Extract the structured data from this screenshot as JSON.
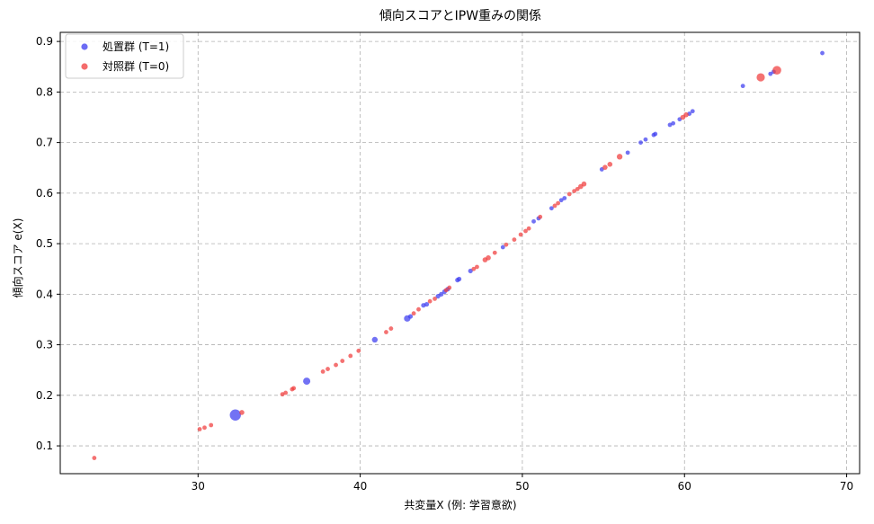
{
  "chart_data": {
    "type": "scatter",
    "title": "傾向スコアとIPW重みの関係",
    "xlabel": "共変量X (例: 学習意欲)",
    "ylabel": "傾向スコア e(X)",
    "xlim": [
      21.5,
      70.8
    ],
    "ylim": [
      0.045,
      0.918
    ],
    "xticks": [
      30,
      40,
      50,
      60,
      70
    ],
    "yticks": [
      0.1,
      0.2,
      0.3,
      0.4,
      0.5,
      0.6,
      0.7,
      0.8,
      0.9
    ],
    "grid": true,
    "legend_position": "top-left",
    "series": [
      {
        "name": "処置群 (T=1)",
        "color": "#3b3bf0",
        "points": [
          [
            32.3,
            0.161,
            6.2
          ],
          [
            36.7,
            0.228,
            4.0
          ],
          [
            40.9,
            0.31,
            3.2
          ],
          [
            42.9,
            0.352,
            3.6
          ],
          [
            43.1,
            0.356,
            2.6
          ],
          [
            43.9,
            0.378,
            2.6
          ],
          [
            44.1,
            0.38,
            2.6
          ],
          [
            44.8,
            0.396,
            2.6
          ],
          [
            45.0,
            0.4,
            2.6
          ],
          [
            45.2,
            0.405,
            2.6
          ],
          [
            45.4,
            0.41,
            2.6
          ],
          [
            46.0,
            0.428,
            2.6
          ],
          [
            46.1,
            0.43,
            2.6
          ],
          [
            46.8,
            0.446,
            2.6
          ],
          [
            48.8,
            0.493,
            2.4
          ],
          [
            50.7,
            0.544,
            2.4
          ],
          [
            51.0,
            0.55,
            2.4
          ],
          [
            51.8,
            0.57,
            2.4
          ],
          [
            52.4,
            0.586,
            2.4
          ],
          [
            52.6,
            0.59,
            2.4
          ],
          [
            54.9,
            0.647,
            2.4
          ],
          [
            56.5,
            0.68,
            2.4
          ],
          [
            57.3,
            0.7,
            2.4
          ],
          [
            57.6,
            0.706,
            2.4
          ],
          [
            58.1,
            0.715,
            2.4
          ],
          [
            58.2,
            0.717,
            2.4
          ],
          [
            59.1,
            0.735,
            2.4
          ],
          [
            59.3,
            0.738,
            2.4
          ],
          [
            59.7,
            0.746,
            2.4
          ],
          [
            60.3,
            0.757,
            2.4
          ],
          [
            60.5,
            0.762,
            2.4
          ],
          [
            63.6,
            0.812,
            2.4
          ],
          [
            65.3,
            0.836,
            2.4
          ],
          [
            65.5,
            0.84,
            2.4
          ],
          [
            68.5,
            0.877,
            2.4
          ]
        ]
      },
      {
        "name": "対照群 (T=0)",
        "color": "#f03b3b",
        "points": [
          [
            23.6,
            0.076,
            2.4
          ],
          [
            30.1,
            0.133,
            2.4
          ],
          [
            30.4,
            0.136,
            2.4
          ],
          [
            30.8,
            0.141,
            2.4
          ],
          [
            32.7,
            0.166,
            2.8
          ],
          [
            35.2,
            0.202,
            2.4
          ],
          [
            35.4,
            0.205,
            2.4
          ],
          [
            35.8,
            0.212,
            2.4
          ],
          [
            35.9,
            0.214,
            2.4
          ],
          [
            37.7,
            0.247,
            2.4
          ],
          [
            38.0,
            0.252,
            2.4
          ],
          [
            38.5,
            0.26,
            2.4
          ],
          [
            38.9,
            0.268,
            2.4
          ],
          [
            39.4,
            0.278,
            2.4
          ],
          [
            39.9,
            0.288,
            2.4
          ],
          [
            41.6,
            0.325,
            2.4
          ],
          [
            41.9,
            0.332,
            2.4
          ],
          [
            43.3,
            0.362,
            2.4
          ],
          [
            43.6,
            0.37,
            2.4
          ],
          [
            44.3,
            0.386,
            2.4
          ],
          [
            44.6,
            0.391,
            2.4
          ],
          [
            45.3,
            0.408,
            2.4
          ],
          [
            45.5,
            0.413,
            2.4
          ],
          [
            47.0,
            0.45,
            2.4
          ],
          [
            47.2,
            0.454,
            2.4
          ],
          [
            47.7,
            0.468,
            2.8
          ],
          [
            47.9,
            0.472,
            2.8
          ],
          [
            48.3,
            0.482,
            2.4
          ],
          [
            49.0,
            0.498,
            2.4
          ],
          [
            49.5,
            0.508,
            2.4
          ],
          [
            49.9,
            0.518,
            2.4
          ],
          [
            50.2,
            0.525,
            2.4
          ],
          [
            50.4,
            0.53,
            2.4
          ],
          [
            51.1,
            0.553,
            2.4
          ],
          [
            52.0,
            0.575,
            2.4
          ],
          [
            52.2,
            0.58,
            2.4
          ],
          [
            52.9,
            0.598,
            2.4
          ],
          [
            53.2,
            0.604,
            2.4
          ],
          [
            53.4,
            0.608,
            2.4
          ],
          [
            53.6,
            0.613,
            2.8
          ],
          [
            53.8,
            0.618,
            2.8
          ],
          [
            55.1,
            0.651,
            2.8
          ],
          [
            55.4,
            0.657,
            2.8
          ],
          [
            56.0,
            0.672,
            3.2
          ],
          [
            59.9,
            0.75,
            2.8
          ],
          [
            60.1,
            0.755,
            2.8
          ],
          [
            64.7,
            0.829,
            4.6
          ],
          [
            65.7,
            0.843,
            4.8
          ]
        ]
      }
    ]
  }
}
